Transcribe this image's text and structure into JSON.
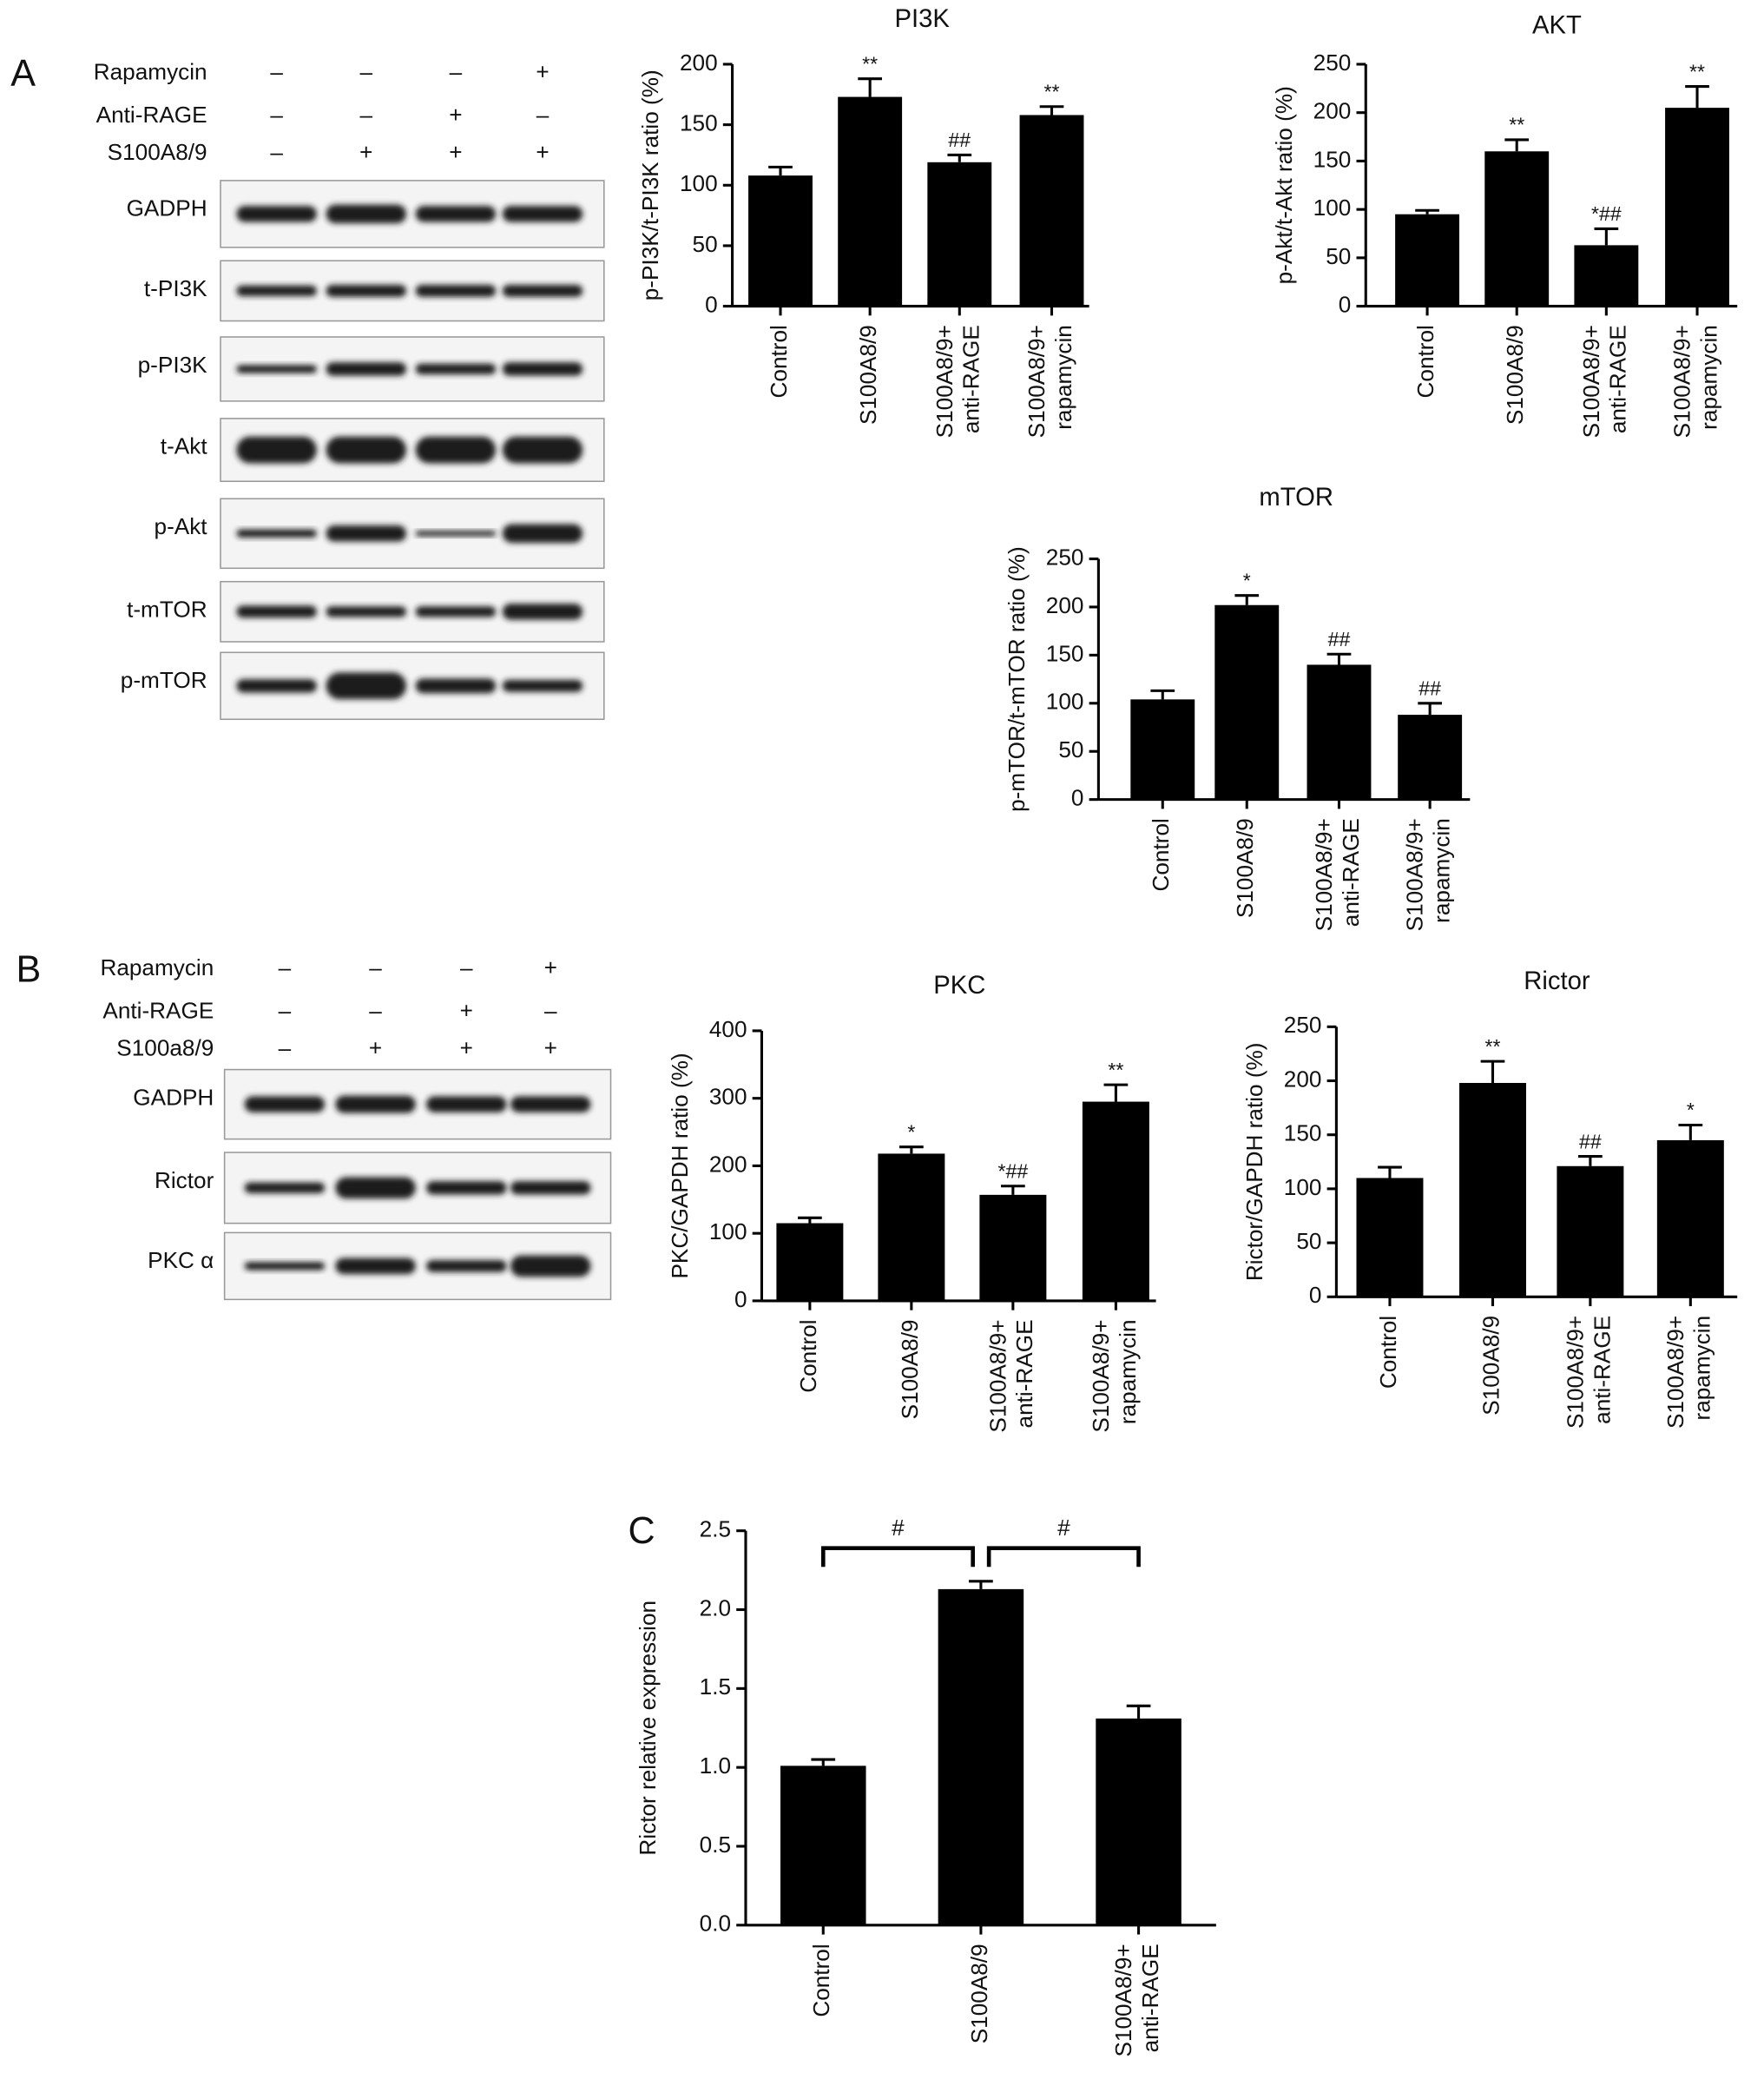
{
  "panels": {
    "A": {
      "label": "A",
      "treatments": [
        {
          "name": "Rapamycin",
          "signs": [
            "–",
            "–",
            "–",
            "+"
          ]
        },
        {
          "name": "Anti-RAGE",
          "signs": [
            "–",
            "–",
            "+",
            "–"
          ]
        },
        {
          "name": "S100A8/9",
          "signs": [
            "–",
            "+",
            "+",
            "+"
          ]
        }
      ],
      "blots": [
        "GADPH",
        "t-PI3K",
        "p-PI3K",
        "t-Akt",
        "p-Akt",
        "t-mTOR",
        "p-mTOR"
      ]
    },
    "B": {
      "label": "B",
      "treatments": [
        {
          "name": "Rapamycin",
          "signs": [
            "–",
            "–",
            "–",
            "+"
          ]
        },
        {
          "name": "Anti-RAGE",
          "signs": [
            "–",
            "–",
            "+",
            "–"
          ]
        },
        {
          "name": "S100a8/9",
          "signs": [
            "–",
            "+",
            "+",
            "+"
          ]
        }
      ],
      "blots": [
        "GADPH",
        "Rictor",
        "PKC α"
      ]
    },
    "C": {
      "label": "C"
    }
  },
  "chart_data": [
    {
      "type": "bar",
      "title": "PI3K",
      "y_label": "p-PI3K/t-PI3K ratio (%)",
      "categories": [
        "Control",
        "S100A8/9",
        "S100A8/9+\nanti-RAGE",
        "S100A8/9+\nrapamycin"
      ],
      "values": [
        108,
        173,
        119,
        158
      ],
      "errors": [
        7,
        15,
        6,
        7
      ],
      "annotations": [
        null,
        "**",
        "##",
        "**"
      ],
      "color": "#000000",
      "ylim": [
        0,
        200
      ],
      "yticks": [
        0,
        50,
        100,
        150,
        200
      ]
    },
    {
      "type": "bar",
      "title": "AKT",
      "y_label": "p-Akt/t-Akt ratio (%)",
      "categories": [
        "Control",
        "S100A8/9",
        "S100A8/9+\nanti-RAGE",
        "S100A8/9+\nrapamycin"
      ],
      "values": [
        95,
        160,
        63,
        205
      ],
      "errors": [
        4,
        12,
        17,
        22
      ],
      "annotations": [
        null,
        "**",
        "*##",
        "**"
      ],
      "color": "#000000",
      "ylim": [
        0,
        250
      ],
      "yticks": [
        0,
        50,
        100,
        150,
        200,
        250
      ]
    },
    {
      "type": "bar",
      "title": "mTOR",
      "y_label": "p-mTOR/t-mTOR ratio (%)",
      "categories": [
        "Control",
        "S100A8/9",
        "S100A8/9+\nanti-RAGE",
        "S100A8/9+\nrapamycin"
      ],
      "values": [
        104,
        202,
        140,
        88
      ],
      "errors": [
        9,
        10,
        11,
        12
      ],
      "annotations": [
        null,
        "*",
        "##",
        "##"
      ],
      "color": "#000000",
      "ylim": [
        0,
        250
      ],
      "yticks": [
        0,
        50,
        100,
        150,
        200,
        250
      ]
    },
    {
      "type": "bar",
      "title": "PKC",
      "y_label": "PKC/GAPDH ratio (%)",
      "categories": [
        "Control",
        "S100A8/9",
        "S100A8/9+\nanti-RAGE",
        "S100A8/9+\nrapamycin"
      ],
      "values": [
        115,
        218,
        157,
        295
      ],
      "errors": [
        8,
        10,
        13,
        25
      ],
      "annotations": [
        null,
        "*",
        "*##",
        "**"
      ],
      "color": "#000000",
      "ylim": [
        0,
        400
      ],
      "yticks": [
        0,
        100,
        200,
        300,
        400
      ]
    },
    {
      "type": "bar",
      "title": "Rictor",
      "y_label": "Rictor/GAPDH ratio (%)",
      "categories": [
        "Control",
        "S100A8/9",
        "S100A8/9+\nanti-RAGE",
        "S100A8/9+\nrapamycin"
      ],
      "values": [
        110,
        198,
        121,
        145
      ],
      "errors": [
        10,
        20,
        9,
        14
      ],
      "annotations": [
        null,
        "**",
        "##",
        "*"
      ],
      "color": "#000000",
      "ylim": [
        0,
        250
      ],
      "yticks": [
        0,
        50,
        100,
        150,
        200,
        250
      ]
    },
    {
      "type": "bar",
      "y_label": "Rictor relative expression",
      "categories": [
        "Control",
        "S100A8/9",
        "S100A8/9+\nanti-RAGE"
      ],
      "values": [
        1.01,
        2.13,
        1.31
      ],
      "errors": [
        0.04,
        0.05,
        0.08
      ],
      "comparisons": [
        {
          "from": 0,
          "to": 1,
          "label": "#"
        },
        {
          "from": 1,
          "to": 2,
          "label": "#"
        }
      ],
      "color": "#000000",
      "ylim": [
        0,
        2.5
      ],
      "yticks": [
        {
          "value": 0,
          "label": "0.0"
        },
        {
          "value": 0.5,
          "label": "0.5"
        },
        {
          "value": 1,
          "label": "1.0"
        },
        {
          "value": 1.5,
          "label": "1.5"
        },
        {
          "value": 2,
          "label": "2.0"
        },
        {
          "value": 2.5,
          "label": "2.5"
        }
      ]
    }
  ]
}
